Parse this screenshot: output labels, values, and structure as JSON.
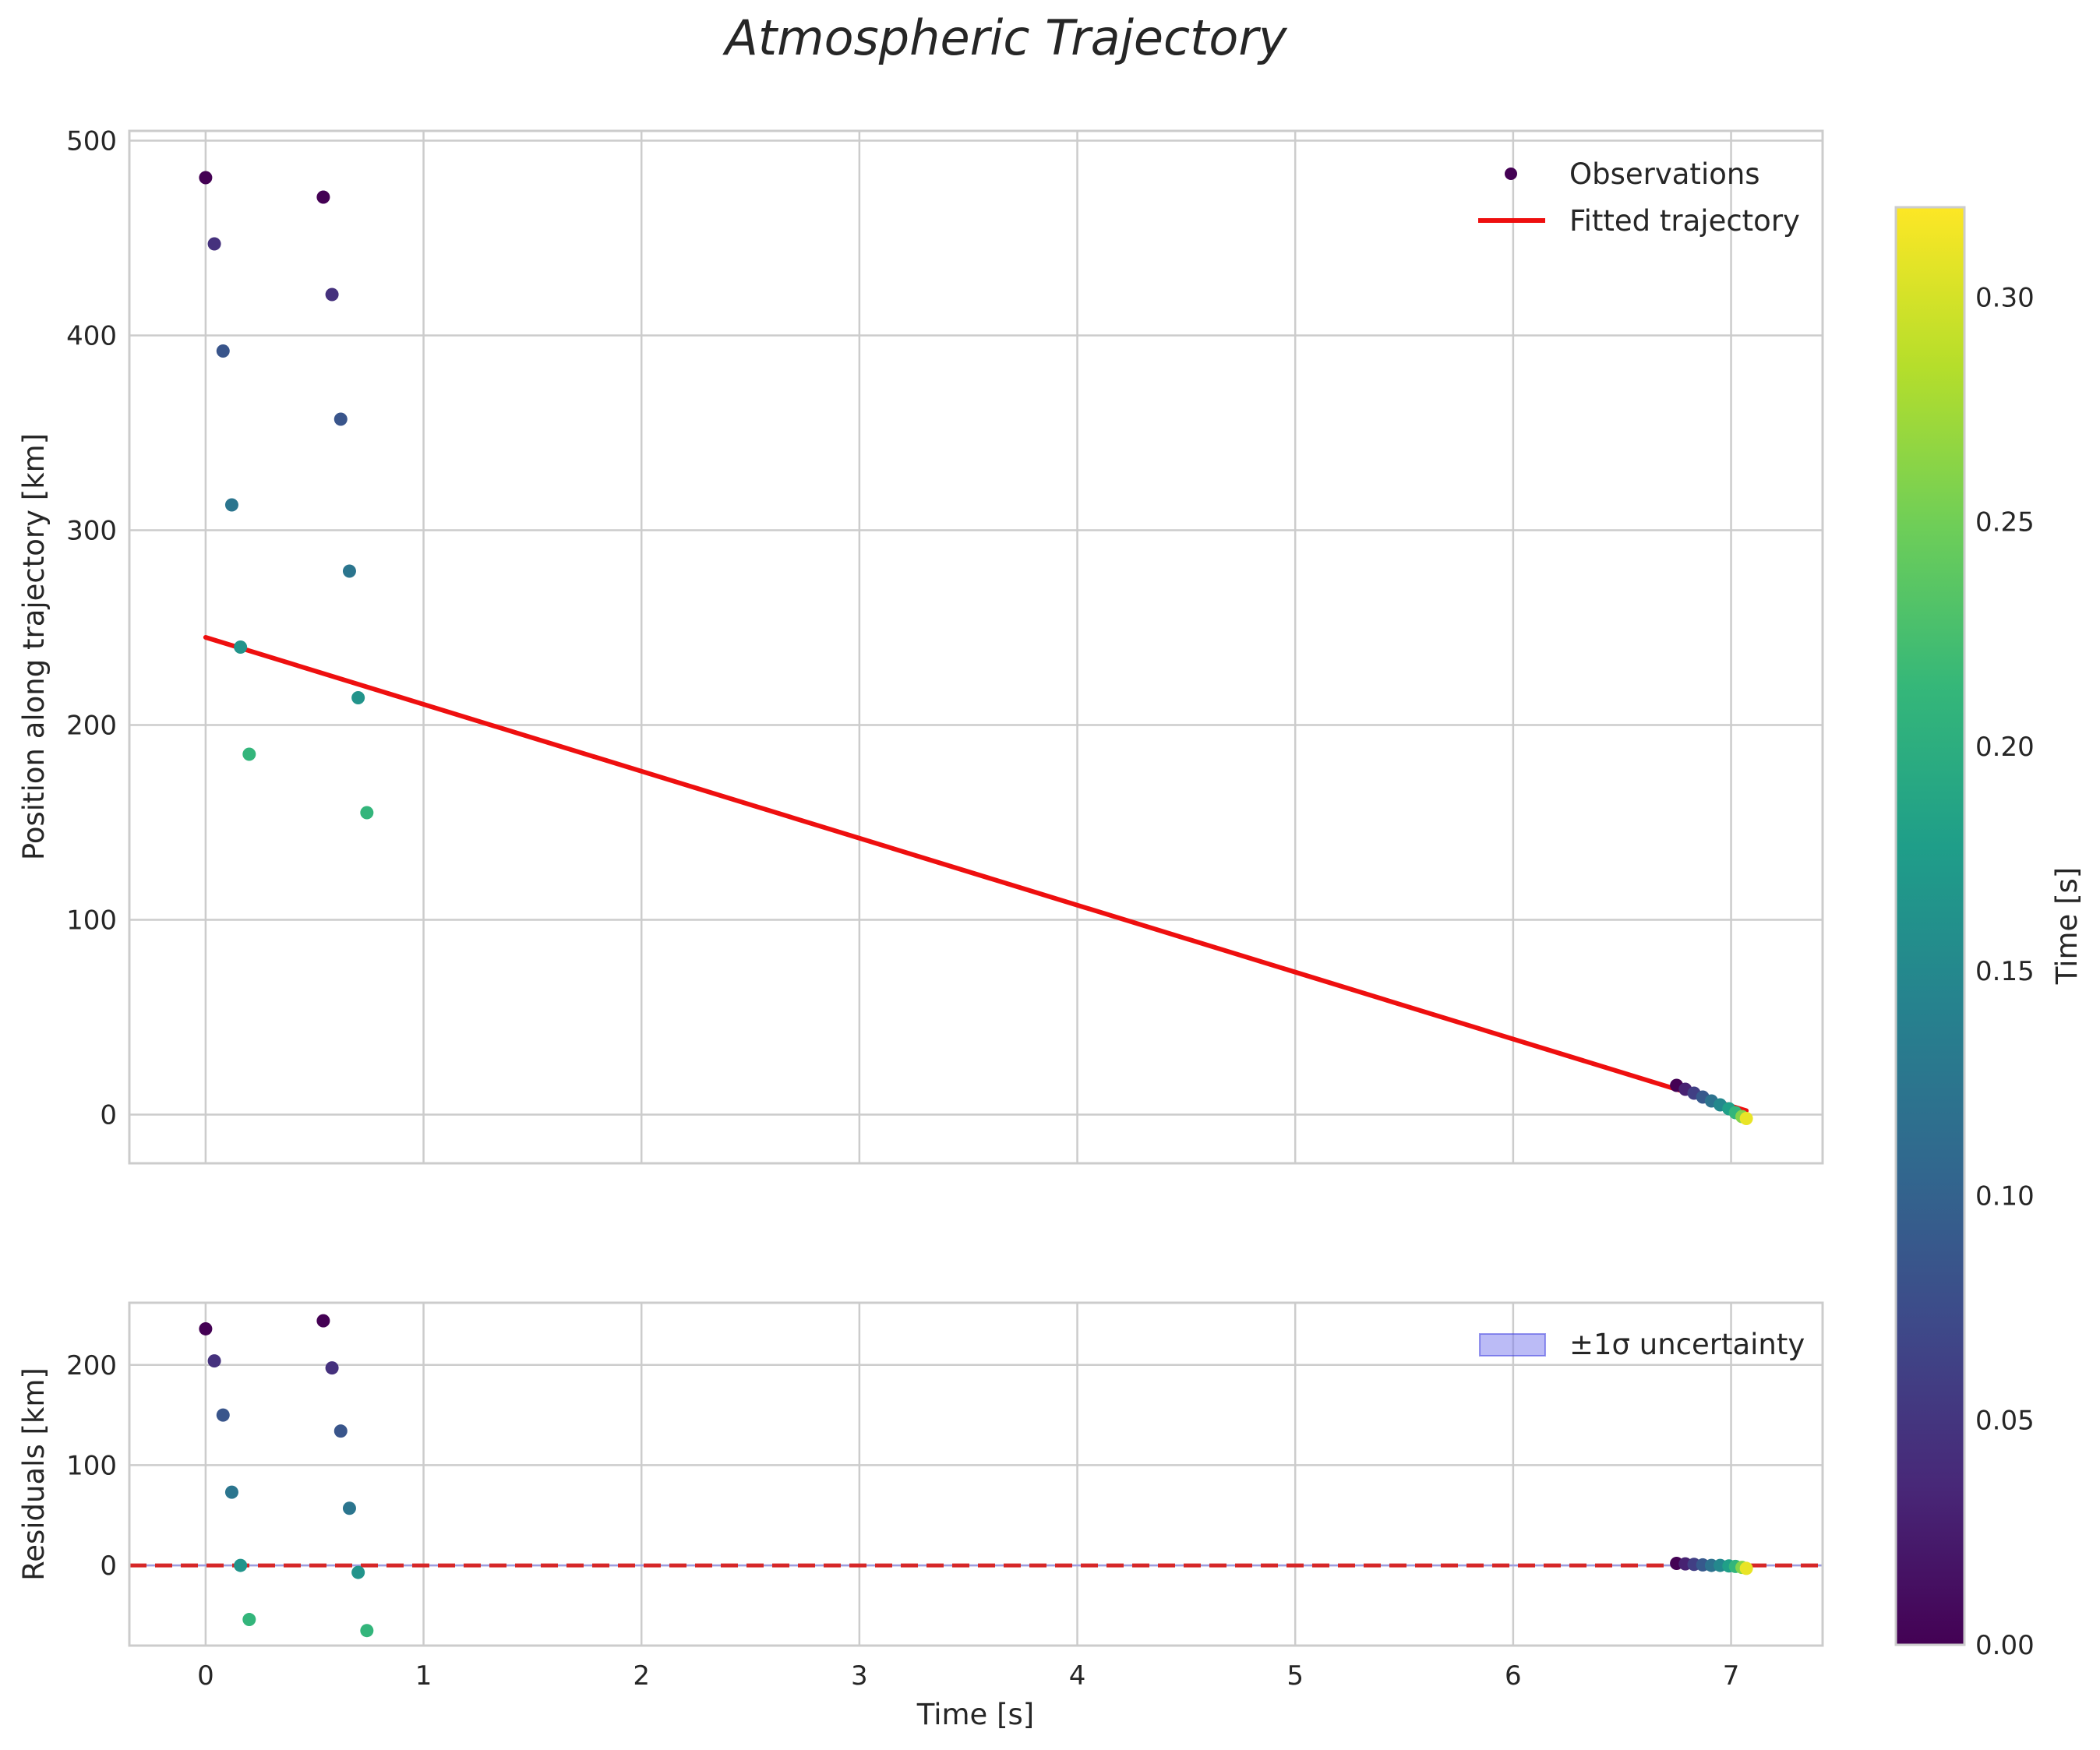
{
  "colors": {
    "fit_line": "#ee0f0f",
    "zero_line": "#d62728",
    "band_fill": "#7777ee",
    "grid": "#cccccc",
    "text": "#262626",
    "viridis": [
      "#440154",
      "#482878",
      "#3e4989",
      "#31688e",
      "#26828e",
      "#1f9e89",
      "#35b779",
      "#6ece58",
      "#b5de2b",
      "#fde725"
    ]
  },
  "chart_data": {
    "type": "scatter",
    "title": "Atmospheric Trajectory",
    "colorbar": {
      "label": "Time [s]",
      "range": [
        0.0,
        0.32
      ],
      "ticks": [
        "0.00",
        "0.05",
        "0.10",
        "0.15",
        "0.20",
        "0.25",
        "0.30"
      ],
      "tick_values": [
        0.0,
        0.05,
        0.1,
        0.15,
        0.2,
        0.25,
        0.3
      ]
    },
    "xlabel": "Time [s]",
    "xlim": [
      -0.35,
      7.42
    ],
    "xticks": [
      0,
      1,
      2,
      3,
      4,
      5,
      6,
      7
    ],
    "xtick_labels": [
      "0",
      "1",
      "2",
      "3",
      "4",
      "5",
      "6",
      "7"
    ],
    "top": {
      "ylabel": "Position along trajectory [km]",
      "ylim": [
        -25,
        505
      ],
      "yticks": [
        0,
        100,
        200,
        300,
        400,
        500
      ],
      "ytick_labels": [
        "0",
        "100",
        "200",
        "300",
        "400",
        "500"
      ],
      "legend": {
        "location": "upper right",
        "observations_label": "Observations",
        "fit_label": "Fitted trajectory"
      },
      "fit_line": {
        "x": [
          0.0,
          7.07
        ],
        "y": [
          245,
          2
        ]
      },
      "observations": [
        {
          "x": 0.0,
          "y": 481,
          "c": 0.0
        },
        {
          "x": 0.04,
          "y": 447,
          "c": 0.045
        },
        {
          "x": 0.08,
          "y": 392,
          "c": 0.085
        },
        {
          "x": 0.12,
          "y": 313,
          "c": 0.125
        },
        {
          "x": 0.16,
          "y": 240,
          "c": 0.165
        },
        {
          "x": 0.2,
          "y": 185,
          "c": 0.21
        },
        {
          "x": 0.54,
          "y": 471,
          "c": 0.0
        },
        {
          "x": 0.58,
          "y": 421,
          "c": 0.045
        },
        {
          "x": 0.62,
          "y": 357,
          "c": 0.085
        },
        {
          "x": 0.66,
          "y": 279,
          "c": 0.125
        },
        {
          "x": 0.7,
          "y": 214,
          "c": 0.165
        },
        {
          "x": 0.74,
          "y": 155,
          "c": 0.21
        },
        {
          "x": 6.75,
          "y": 15,
          "c": 0.0
        },
        {
          "x": 6.79,
          "y": 13,
          "c": 0.03
        },
        {
          "x": 6.83,
          "y": 11,
          "c": 0.06
        },
        {
          "x": 6.87,
          "y": 9,
          "c": 0.09
        },
        {
          "x": 6.91,
          "y": 7,
          "c": 0.12
        },
        {
          "x": 6.95,
          "y": 5,
          "c": 0.15
        },
        {
          "x": 6.99,
          "y": 3,
          "c": 0.18
        },
        {
          "x": 7.02,
          "y": 1,
          "c": 0.21
        },
        {
          "x": 7.05,
          "y": -1,
          "c": 0.26
        },
        {
          "x": 7.07,
          "y": -2,
          "c": 0.31
        }
      ]
    },
    "bottom": {
      "ylabel": "Residuals [km]",
      "ylim": [
        -80,
        262
      ],
      "yticks": [
        0,
        100,
        200
      ],
      "ytick_labels": [
        "0",
        "100",
        "200"
      ],
      "legend": {
        "location": "upper right",
        "band_label": "±1σ uncertainty"
      },
      "zero_line": 0,
      "band": [
        -1,
        1
      ],
      "residuals": [
        {
          "x": 0.0,
          "y": 236,
          "c": 0.0
        },
        {
          "x": 0.04,
          "y": 204,
          "c": 0.045
        },
        {
          "x": 0.08,
          "y": 150,
          "c": 0.085
        },
        {
          "x": 0.12,
          "y": 73,
          "c": 0.125
        },
        {
          "x": 0.16,
          "y": 0,
          "c": 0.165
        },
        {
          "x": 0.2,
          "y": -54,
          "c": 0.21
        },
        {
          "x": 0.54,
          "y": 244,
          "c": 0.0
        },
        {
          "x": 0.58,
          "y": 197,
          "c": 0.045
        },
        {
          "x": 0.62,
          "y": 134,
          "c": 0.085
        },
        {
          "x": 0.66,
          "y": 57,
          "c": 0.125
        },
        {
          "x": 0.7,
          "y": -7,
          "c": 0.165
        },
        {
          "x": 0.74,
          "y": -65,
          "c": 0.21
        },
        {
          "x": 6.75,
          "y": 2,
          "c": 0.0
        },
        {
          "x": 6.79,
          "y": 1.5,
          "c": 0.03
        },
        {
          "x": 6.83,
          "y": 1,
          "c": 0.06
        },
        {
          "x": 6.87,
          "y": 0.5,
          "c": 0.09
        },
        {
          "x": 6.91,
          "y": 0,
          "c": 0.12
        },
        {
          "x": 6.95,
          "y": 0,
          "c": 0.15
        },
        {
          "x": 6.99,
          "y": -0.5,
          "c": 0.18
        },
        {
          "x": 7.02,
          "y": -1,
          "c": 0.21
        },
        {
          "x": 7.05,
          "y": -2,
          "c": 0.26
        },
        {
          "x": 7.07,
          "y": -3,
          "c": 0.31
        }
      ]
    }
  }
}
